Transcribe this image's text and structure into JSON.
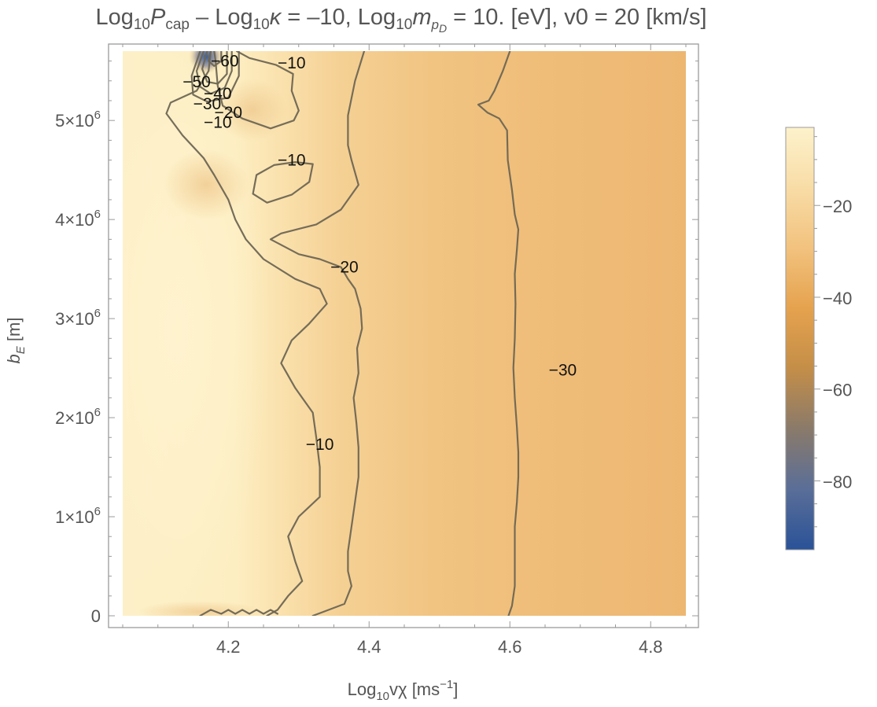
{
  "chart_data": {
    "type": "contour",
    "title": {
      "prefix": "Log",
      "sub1": "10",
      "p": "P",
      "p_sub": "cap",
      "mid": " – Log",
      "sub2": "10",
      "kappa": "κ",
      "kappa_eq": " = –10, Log",
      "sub3": "10",
      "m": "m",
      "m_sub": "p",
      "m_subsub": "D",
      "suffix": " = 10. [eV], v0 = 20 [km/s]"
    },
    "xlabel": {
      "prefix": "Log",
      "sub": "10",
      "main": "vχ [ms",
      "sup": "−1",
      "suffix": "]"
    },
    "ylabel": {
      "main": "b",
      "sub": "E",
      "suffix": " [m]"
    },
    "xlim": [
      4.05,
      4.85
    ],
    "ylim": [
      0,
      5700000
    ],
    "x_ticks": [
      {
        "value": 4.2,
        "label": "4.2"
      },
      {
        "value": 4.4,
        "label": "4.4"
      },
      {
        "value": 4.6,
        "label": "4.6"
      },
      {
        "value": 4.8,
        "label": "4.8"
      }
    ],
    "y_ticks": [
      {
        "value": 0,
        "label": "0",
        "mant": "",
        "exp": ""
      },
      {
        "value": 1000000,
        "label": "1×10^6",
        "mant": "1×10",
        "exp": "6"
      },
      {
        "value": 2000000,
        "label": "2×10^6",
        "mant": "2×10",
        "exp": "6"
      },
      {
        "value": 3000000,
        "label": "3×10^6",
        "mant": "3×10",
        "exp": "6"
      },
      {
        "value": 4000000,
        "label": "4×10^6",
        "mant": "4×10",
        "exp": "6"
      },
      {
        "value": 5000000,
        "label": "5×10^6",
        "mant": "5×10",
        "exp": "6"
      }
    ],
    "colorbar": {
      "range": [
        -95,
        -3
      ],
      "ticks": [
        {
          "value": -20,
          "label": "−20"
        },
        {
          "value": -40,
          "label": "−40"
        },
        {
          "value": -60,
          "label": "−60"
        },
        {
          "value": -80,
          "label": "−80"
        }
      ],
      "colors": [
        "#2a5298",
        "#5a6e98",
        "#8a7a6a",
        "#c48e48",
        "#e5a24e",
        "#f2c27e",
        "#f8dca6",
        "#fdf2cc"
      ]
    },
    "contour_labels": [
      {
        "text": "−60",
        "x": 4.195,
        "y": 5600000
      },
      {
        "text": "−10",
        "x": 4.29,
        "y": 5580000
      },
      {
        "text": "−50",
        "x": 4.155,
        "y": 5390000
      },
      {
        "text": "−40",
        "x": 4.185,
        "y": 5270000
      },
      {
        "text": "−30",
        "x": 4.17,
        "y": 5170000
      },
      {
        "text": "−20",
        "x": 4.2,
        "y": 5080000
      },
      {
        "text": "−10",
        "x": 4.185,
        "y": 4980000
      },
      {
        "text": "−10",
        "x": 4.29,
        "y": 4600000
      },
      {
        "text": "−20",
        "x": 4.365,
        "y": 3520000
      },
      {
        "text": "−30",
        "x": 4.675,
        "y": 2480000
      },
      {
        "text": "−10",
        "x": 4.33,
        "y": 1730000
      }
    ],
    "contours": [
      {
        "level": -10,
        "points": [
          [
            4.175,
            5700000
          ],
          [
            4.172,
            5500000
          ],
          [
            4.155,
            5300000
          ],
          [
            4.118,
            5180000
          ],
          [
            4.112,
            5070000
          ],
          [
            4.135,
            4850000
          ],
          [
            4.165,
            4620000
          ],
          [
            4.18,
            4450000
          ],
          [
            4.2,
            4200000
          ],
          [
            4.21,
            4000000
          ],
          [
            4.225,
            3800000
          ],
          [
            4.25,
            3600000
          ],
          [
            4.295,
            3400000
          ],
          [
            4.33,
            3300000
          ],
          [
            4.34,
            3150000
          ],
          [
            4.315,
            2950000
          ],
          [
            4.29,
            2780000
          ],
          [
            4.275,
            2550000
          ],
          [
            4.295,
            2300000
          ],
          [
            4.32,
            2050000
          ],
          [
            4.325,
            1800000
          ],
          [
            4.33,
            1500000
          ],
          [
            4.33,
            1200000
          ],
          [
            4.3,
            1000000
          ],
          [
            4.285,
            800000
          ],
          [
            4.295,
            550000
          ],
          [
            4.305,
            350000
          ],
          [
            4.285,
            200000
          ],
          [
            4.27,
            60000
          ],
          [
            4.255,
            0
          ]
        ]
      },
      {
        "level": -10,
        "points": [
          [
            4.212,
            5700000
          ],
          [
            4.23,
            5630000
          ],
          [
            4.268,
            5560000
          ],
          [
            4.292,
            5470000
          ],
          [
            4.29,
            5300000
          ],
          [
            4.3,
            5100000
          ],
          [
            4.293,
            5000000
          ],
          [
            4.26,
            4920000
          ],
          [
            4.22,
            5020000
          ],
          [
            4.192,
            5150000
          ],
          [
            4.185,
            5350000
          ],
          [
            4.182,
            5600000
          ],
          [
            4.18,
            5700000
          ]
        ]
      },
      {
        "level": -10,
        "points": [
          [
            4.265,
            4550000
          ],
          [
            4.295,
            4580000
          ],
          [
            4.32,
            4560000
          ],
          [
            4.315,
            4380000
          ],
          [
            4.29,
            4250000
          ],
          [
            4.255,
            4170000
          ],
          [
            4.235,
            4260000
          ],
          [
            4.24,
            4450000
          ],
          [
            4.265,
            4550000
          ]
        ]
      },
      {
        "level": -20,
        "points": [
          [
            4.393,
            5700000
          ],
          [
            4.38,
            5400000
          ],
          [
            4.37,
            5050000
          ],
          [
            4.37,
            4750000
          ],
          [
            4.375,
            4600000
          ],
          [
            4.385,
            4350000
          ],
          [
            4.36,
            4100000
          ],
          [
            4.325,
            3950000
          ],
          [
            4.275,
            3860000
          ],
          [
            4.26,
            3800000
          ],
          [
            4.3,
            3650000
          ],
          [
            4.33,
            3600000
          ],
          [
            4.36,
            3520000
          ],
          [
            4.37,
            3400000
          ],
          [
            4.38,
            3300000
          ],
          [
            4.388,
            3100000
          ],
          [
            4.39,
            2900000
          ],
          [
            4.383,
            2700000
          ],
          [
            4.385,
            2450000
          ],
          [
            4.378,
            2200000
          ],
          [
            4.382,
            1950000
          ],
          [
            4.385,
            1700000
          ],
          [
            4.385,
            1400000
          ],
          [
            4.38,
            1150000
          ],
          [
            4.375,
            900000
          ],
          [
            4.37,
            650000
          ],
          [
            4.37,
            450000
          ],
          [
            4.375,
            300000
          ],
          [
            4.365,
            120000
          ],
          [
            4.335,
            40000
          ],
          [
            4.32,
            0
          ]
        ]
      },
      {
        "level": -20,
        "points": [
          [
            4.16,
            0
          ],
          [
            4.175,
            60000
          ],
          [
            4.19,
            20000
          ],
          [
            4.2,
            60000
          ],
          [
            4.21,
            20000
          ],
          [
            4.22,
            60000
          ],
          [
            4.23,
            20000
          ],
          [
            4.24,
            60000
          ],
          [
            4.25,
            20000
          ],
          [
            4.26,
            60000
          ],
          [
            4.27,
            20000
          ]
        ]
      },
      {
        "level": -30,
        "points": [
          [
            4.6,
            5700000
          ],
          [
            4.59,
            5500000
          ],
          [
            4.578,
            5300000
          ],
          [
            4.57,
            5200000
          ],
          [
            4.555,
            5160000
          ],
          [
            4.568,
            5080000
          ],
          [
            4.585,
            5020000
          ],
          [
            4.596,
            4900000
          ],
          [
            4.597,
            4600000
          ],
          [
            4.603,
            4300000
          ],
          [
            4.607,
            4050000
          ],
          [
            4.612,
            3900000
          ],
          [
            4.61,
            3700000
          ],
          [
            4.607,
            3450000
          ],
          [
            4.608,
            3150000
          ],
          [
            4.607,
            2800000
          ],
          [
            4.605,
            2500000
          ],
          [
            4.607,
            2200000
          ],
          [
            4.61,
            1900000
          ],
          [
            4.612,
            1650000
          ],
          [
            4.612,
            1400000
          ],
          [
            4.61,
            1150000
          ],
          [
            4.607,
            900000
          ],
          [
            4.607,
            600000
          ],
          [
            4.607,
            300000
          ],
          [
            4.603,
            100000
          ],
          [
            4.598,
            0
          ]
        ]
      },
      {
        "level": -40,
        "points": [
          [
            4.165,
            5700000
          ],
          [
            4.155,
            5500000
          ],
          [
            4.16,
            5340000
          ],
          [
            4.175,
            5270000
          ],
          [
            4.195,
            5330000
          ],
          [
            4.205,
            5500000
          ],
          [
            4.205,
            5700000
          ]
        ]
      },
      {
        "level": -50,
        "points": [
          [
            4.17,
            5700000
          ],
          [
            4.163,
            5520000
          ],
          [
            4.17,
            5390000
          ],
          [
            4.185,
            5370000
          ],
          [
            4.198,
            5470000
          ],
          [
            4.198,
            5700000
          ]
        ]
      },
      {
        "level": -30,
        "points": [
          [
            4.16,
            5700000
          ],
          [
            4.148,
            5450000
          ],
          [
            4.15,
            5260000
          ],
          [
            4.17,
            5190000
          ],
          [
            4.2,
            5230000
          ],
          [
            4.215,
            5450000
          ],
          [
            4.215,
            5700000
          ]
        ]
      },
      {
        "level": -60,
        "points": [
          [
            4.175,
            5700000
          ],
          [
            4.172,
            5600000
          ],
          [
            4.18,
            5550000
          ],
          [
            4.19,
            5600000
          ],
          [
            4.19,
            5700000
          ]
        ]
      }
    ],
    "grid": false,
    "legend": "colorbar-right"
  }
}
